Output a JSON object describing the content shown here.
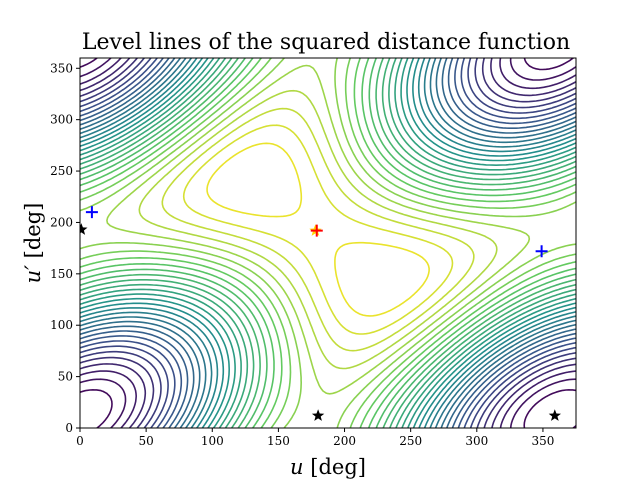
{
  "chart_data": {
    "type": "contour",
    "title": "Level lines of the squared distance function",
    "xlabel": {
      "symbol": "u",
      "unit": " [deg]"
    },
    "ylabel": {
      "symbol": "u′",
      "unit": " [deg]"
    },
    "xlim": [
      0,
      375
    ],
    "ylim": [
      0,
      360
    ],
    "xticks": [
      0,
      50,
      100,
      150,
      200,
      250,
      300,
      350
    ],
    "yticks": [
      0,
      50,
      100,
      150,
      200,
      250,
      300,
      350
    ],
    "grid": false,
    "colormap": [
      "#440154",
      "#3b528b",
      "#21918c",
      "#5ec962",
      "#fde725"
    ],
    "contour": {
      "center": [
        180,
        193
      ],
      "levels": 32,
      "description": "level lines of the squared distance function, periodic in 360 deg"
    },
    "markers": [
      {
        "name": "blue-plus-1",
        "type": "plus",
        "color": "#0000ff",
        "x": 9,
        "y": 210
      },
      {
        "name": "blue-plus-2",
        "type": "plus",
        "color": "#0000ff",
        "x": 349,
        "y": 172
      },
      {
        "name": "red-plus",
        "type": "plus",
        "color": "#ff0000",
        "x": 179,
        "y": 192
      },
      {
        "name": "yellow-star",
        "type": "star",
        "color": "#ffd700",
        "x": 178,
        "y": 192
      },
      {
        "name": "black-star-1",
        "type": "star",
        "color": "#000000",
        "x": 1,
        "y": 193
      },
      {
        "name": "black-star-2",
        "type": "star",
        "color": "#000000",
        "x": 180,
        "y": 12
      },
      {
        "name": "black-star-3",
        "type": "star",
        "color": "#000000",
        "x": 359,
        "y": 12
      }
    ]
  }
}
